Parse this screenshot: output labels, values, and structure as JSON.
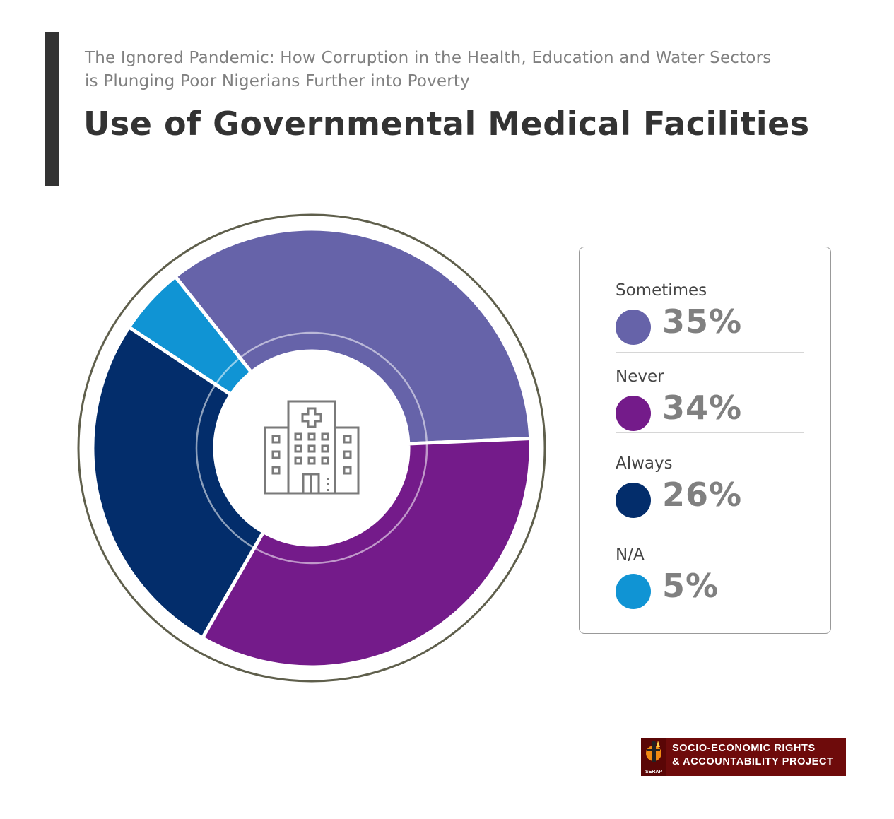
{
  "header": {
    "subtitle_line1": "The Ignored Pandemic: How Corruption in the Health, Education and Water Sectors",
    "subtitle_line2": "is Plunging Poor Nigerians Further into Poverty",
    "title": "Use of Governmental Medical Facilities"
  },
  "chart_data": {
    "type": "pie",
    "variant": "donut",
    "title": "Use of Governmental Medical Facilities",
    "center_icon": "hospital-icon",
    "legend_placement": "right",
    "slices": [
      {
        "label": "Sometimes",
        "value": 35,
        "display": "35%",
        "color": "#6663a9"
      },
      {
        "label": "Never",
        "value": 34,
        "display": "34%",
        "color": "#741b8a"
      },
      {
        "label": "Always",
        "value": 26,
        "display": "26%",
        "color": "#032d6b"
      },
      {
        "label": "N/A",
        "value": 5,
        "display": "5%",
        "color": "#1094d4"
      }
    ]
  },
  "logo": {
    "line1": "SOCIO-ECONOMIC RIGHTS",
    "line2": "& ACCOUNTABILITY PROJECT",
    "mark_text": "SERAP",
    "background": "#6e0b0b"
  }
}
